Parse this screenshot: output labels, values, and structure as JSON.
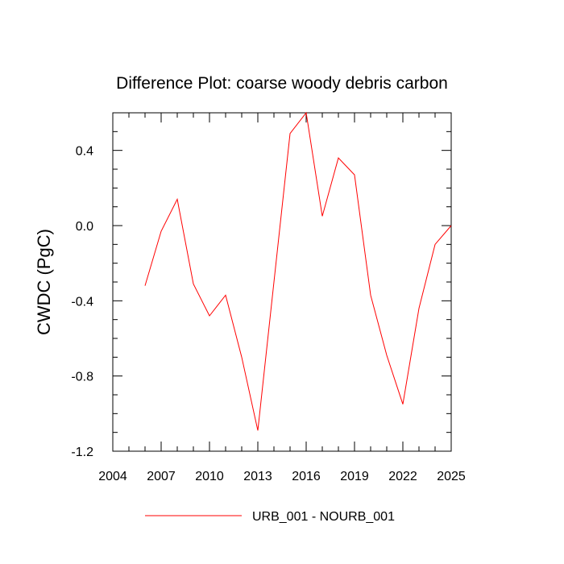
{
  "chart_data": {
    "type": "line",
    "title": "Difference Plot: coarse woody debris carbon",
    "ylabel": "CWDC  (PgC)",
    "xlabel": "",
    "xlim": [
      2004,
      2025
    ],
    "ylim": [
      -1.2,
      0.6
    ],
    "xticks": [
      2004,
      2007,
      2010,
      2013,
      2016,
      2019,
      2022,
      2025
    ],
    "xtick_labels": [
      "2004",
      "2007",
      "2010",
      "2013",
      "2016",
      "2019",
      "2022",
      "2025"
    ],
    "yticks": [
      -1.2,
      -0.8,
      -0.4,
      0.0,
      0.4
    ],
    "ytick_labels": [
      "-1.2",
      "-0.8",
      "-0.4",
      "0.0",
      "0.4"
    ],
    "x_minor_step": 1,
    "y_minor_step": 0.1,
    "grid": false,
    "legend_position": "bottom",
    "series": [
      {
        "name": "URB_001 - NOURB_001",
        "color": "#ff0000",
        "x": [
          2006,
          2007,
          2008,
          2009,
          2010,
          2011,
          2012,
          2013,
          2014,
          2015,
          2016,
          2017,
          2018,
          2019,
          2020,
          2021,
          2022,
          2023,
          2024,
          2025
        ],
        "y": [
          -0.32,
          -0.03,
          0.14,
          -0.31,
          -0.48,
          -0.37,
          -0.7,
          -1.09,
          -0.3,
          0.49,
          0.6,
          0.05,
          0.36,
          0.27,
          -0.37,
          -0.69,
          -0.95,
          -0.44,
          -0.1,
          0.0
        ]
      }
    ]
  }
}
